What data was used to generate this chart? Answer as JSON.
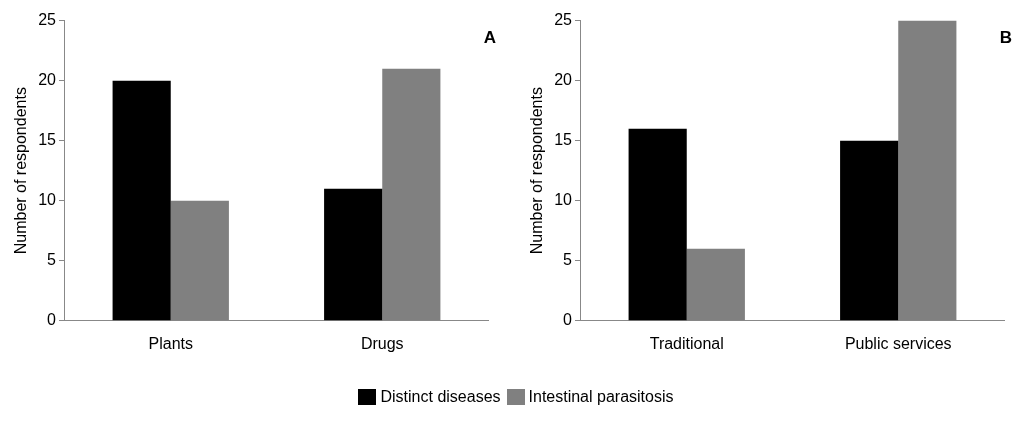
{
  "chart_data": [
    {
      "type": "bar",
      "categories": [
        "Plants",
        "Drugs"
      ],
      "ylabel": "Number of respondents",
      "ylim": [
        0,
        25
      ],
      "yticks": [
        0,
        5,
        10,
        15,
        20,
        25
      ],
      "grid": false,
      "legend": "bottom",
      "annotations": [
        "A"
      ],
      "series": [
        {
          "name": "Distinct diseases",
          "color": "#000000",
          "values": [
            20,
            11
          ]
        },
        {
          "name": "Intestinal parasitosis",
          "color": "#808080",
          "values": [
            10,
            21
          ]
        }
      ]
    },
    {
      "type": "bar",
      "categories": [
        "Traditional",
        "Public services"
      ],
      "ylabel": "Number of respondents",
      "ylim": [
        0,
        25
      ],
      "yticks": [
        0,
        5,
        10,
        15,
        20,
        25
      ],
      "grid": false,
      "annotations": [
        "B"
      ],
      "series": [
        {
          "color": "#000000",
          "values": [
            16,
            15
          ]
        },
        {
          "color": "#808080",
          "values": [
            6,
            25
          ]
        }
      ]
    }
  ]
}
